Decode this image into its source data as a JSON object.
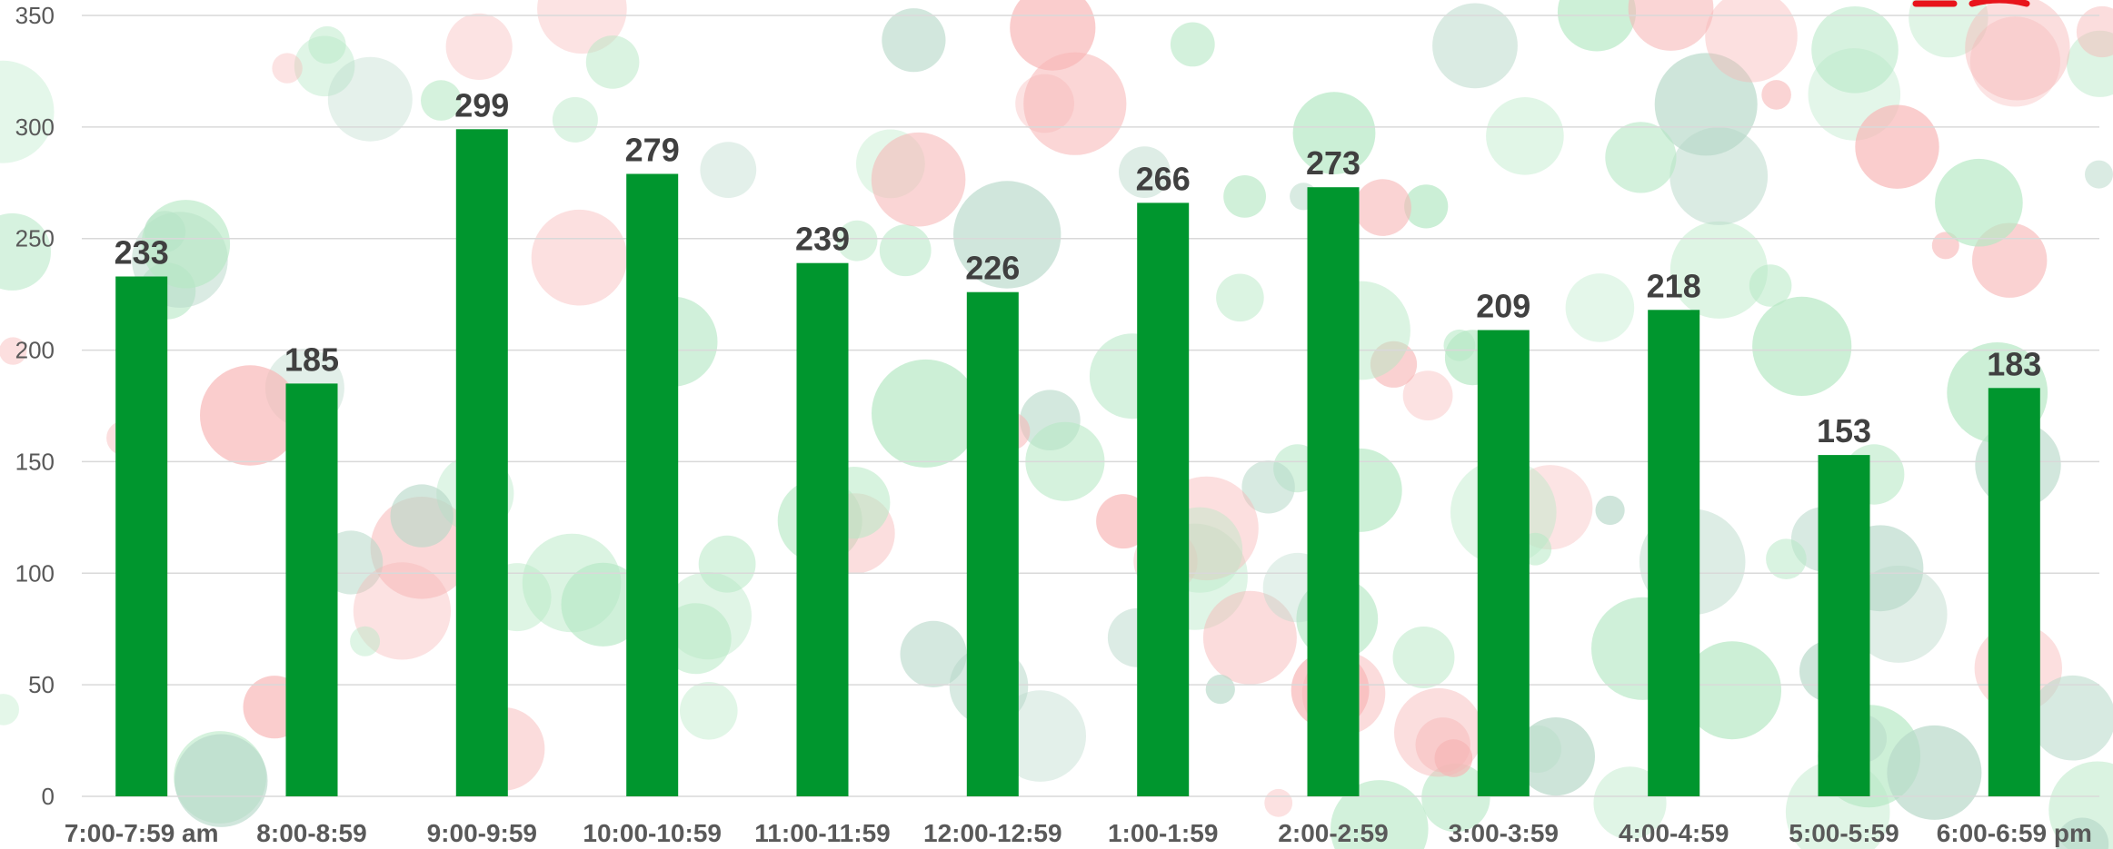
{
  "chart_data": {
    "type": "bar",
    "categories": [
      "7:00-7:59 am",
      "8:00-8:59",
      "9:00-9:59",
      "10:00-10:59",
      "11:00-11:59",
      "12:00-12:59",
      "1:00-1:59",
      "2:00-2:59",
      "3:00-3:59",
      "4:00-4:59",
      "5:00-5:59",
      "6:00-6:59 pm"
    ],
    "values": [
      233,
      185,
      299,
      279,
      239,
      226,
      266,
      273,
      209,
      218,
      153,
      183
    ],
    "data_labels": [
      "233",
      "185",
      "299",
      "279",
      "239",
      "226",
      "266",
      "273",
      "209",
      "218",
      "153",
      "183"
    ],
    "title": "",
    "xlabel": "",
    "ylabel": "",
    "ylim": [
      0,
      350
    ],
    "yticks": [
      0,
      50,
      100,
      150,
      200,
      250,
      300,
      350
    ],
    "ytick_labels": [
      "0",
      "50",
      "100",
      "150",
      "200",
      "250",
      "300",
      "350"
    ],
    "grid": true,
    "legend": "none",
    "bar_color": "#00962e",
    "background": "polka-dot pattern of faint red and green circles"
  },
  "colors": {
    "bar": "#00962e",
    "gridline": "#d9d9d9",
    "tick_text": "#595959",
    "label_text": "#404040",
    "dot_red": "#f7b5b5",
    "dot_green": "#b5e8c4",
    "dot_teal": "#b6d8c8",
    "accent_red": "#e8141b"
  }
}
